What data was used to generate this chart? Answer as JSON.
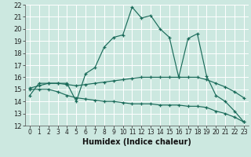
{
  "title": "",
  "xlabel": "Humidex (Indice chaleur)",
  "bg_color": "#cce8e0",
  "grid_color": "#ffffff",
  "line_color": "#1a6b5a",
  "xlim": [
    -0.5,
    23.5
  ],
  "ylim": [
    12,
    22
  ],
  "xticks": [
    0,
    1,
    2,
    3,
    4,
    5,
    6,
    7,
    8,
    9,
    10,
    11,
    12,
    13,
    14,
    15,
    16,
    17,
    18,
    19,
    20,
    21,
    22,
    23
  ],
  "yticks": [
    12,
    13,
    14,
    15,
    16,
    17,
    18,
    19,
    20,
    21,
    22
  ],
  "line1_x": [
    0,
    1,
    2,
    3,
    4,
    5,
    6,
    7,
    8,
    9,
    10,
    11,
    12,
    13,
    14,
    15,
    16,
    17,
    18,
    19,
    20,
    21,
    22,
    23
  ],
  "line1_y": [
    14.5,
    15.5,
    15.5,
    15.5,
    15.5,
    14.0,
    16.3,
    16.8,
    18.5,
    19.3,
    19.5,
    21.8,
    20.9,
    21.1,
    20.0,
    19.3,
    16.0,
    19.2,
    19.6,
    16.1,
    14.5,
    14.0,
    13.2,
    12.3
  ],
  "line2_x": [
    0,
    1,
    2,
    3,
    4,
    5,
    6,
    7,
    8,
    9,
    10,
    11,
    12,
    13,
    14,
    15,
    16,
    17,
    18,
    19,
    20,
    21,
    22,
    23
  ],
  "line2_y": [
    15.1,
    15.3,
    15.5,
    15.5,
    15.4,
    15.3,
    15.4,
    15.5,
    15.6,
    15.7,
    15.8,
    15.9,
    16.0,
    16.0,
    16.0,
    16.0,
    16.0,
    16.0,
    16.0,
    15.8,
    15.5,
    15.2,
    14.8,
    14.3
  ],
  "line3_x": [
    0,
    1,
    2,
    3,
    4,
    5,
    6,
    7,
    8,
    9,
    10,
    11,
    12,
    13,
    14,
    15,
    16,
    17,
    18,
    19,
    20,
    21,
    22,
    23
  ],
  "line3_y": [
    15.0,
    15.0,
    15.0,
    14.8,
    14.5,
    14.3,
    14.2,
    14.1,
    14.0,
    14.0,
    13.9,
    13.8,
    13.8,
    13.8,
    13.7,
    13.7,
    13.7,
    13.6,
    13.6,
    13.5,
    13.2,
    13.0,
    12.7,
    12.3
  ]
}
